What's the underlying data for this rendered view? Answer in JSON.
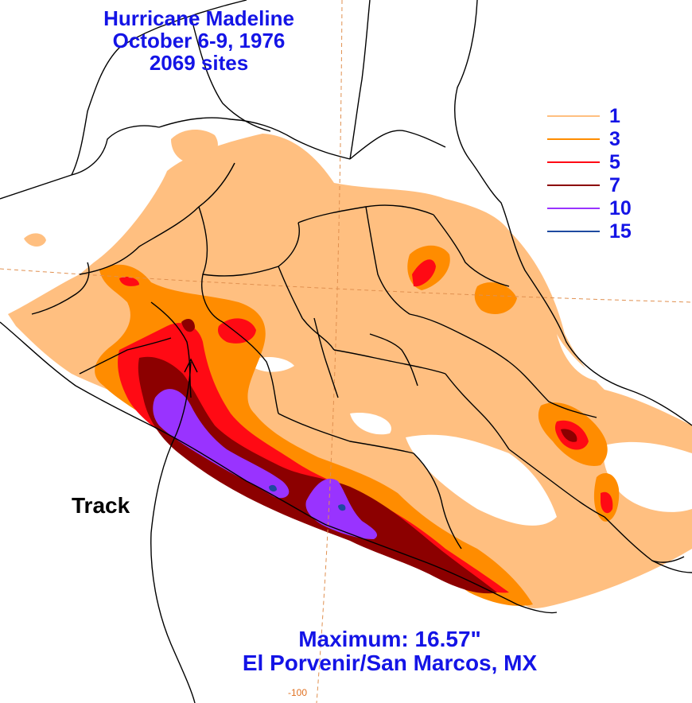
{
  "title": {
    "line1": "Hurricane Madeline",
    "line2": "October 6-9, 1976",
    "line3": "2069 sites"
  },
  "legend": {
    "items": [
      {
        "label": "1",
        "color": "#ffbf80"
      },
      {
        "label": "3",
        "color": "#ff8c00"
      },
      {
        "label": "5",
        "color": "#ff0a14"
      },
      {
        "label": "7",
        "color": "#8c0000"
      },
      {
        "label": "10",
        "color": "#9933ff"
      },
      {
        "label": "15",
        "color": "#1e4aa0"
      }
    ]
  },
  "track_label": "Track",
  "footer": {
    "maximum": "Maximum:  16.57\"",
    "location": "El Porvenir/San Marcos, MX"
  },
  "axis": {
    "longitude_tick": "-100"
  },
  "colors": {
    "text_blue": "#1414e6",
    "gridline": "#e09050",
    "border": "#000000"
  }
}
